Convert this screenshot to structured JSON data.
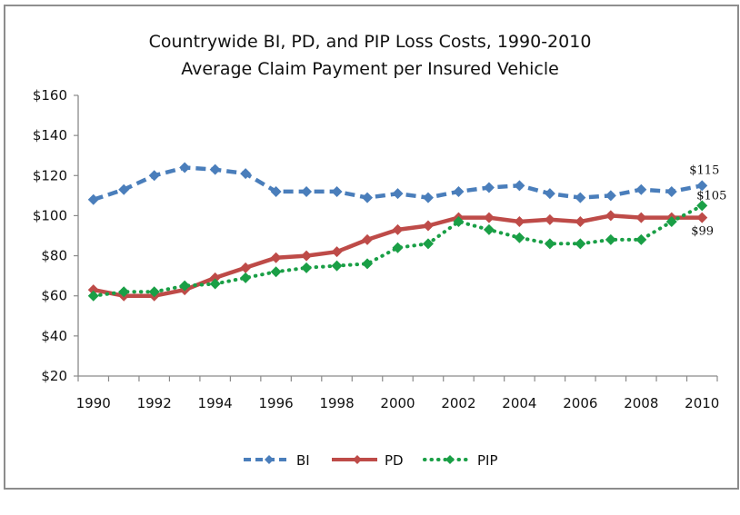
{
  "chart_data": {
    "type": "line",
    "title": "Countrywide BI, PD, and PIP Loss Costs, 1990-2010",
    "subtitle": "Average Claim Payment per Insured Vehicle",
    "xlabel": "",
    "ylabel": "",
    "ylim": [
      20,
      160
    ],
    "y_ticks": [
      "$20",
      "$40",
      "$60",
      "$80",
      "$100",
      "$120",
      "$140",
      "$160"
    ],
    "y_tick_values": [
      20,
      40,
      60,
      80,
      100,
      120,
      140,
      160
    ],
    "x": [
      1990,
      1991,
      1992,
      1993,
      1994,
      1995,
      1996,
      1997,
      1998,
      1999,
      2000,
      2001,
      2002,
      2003,
      2004,
      2005,
      2006,
      2007,
      2008,
      2009,
      2010
    ],
    "x_tick_labels": [
      "1990",
      "1992",
      "1994",
      "1996",
      "1998",
      "2000",
      "2002",
      "2004",
      "2006",
      "2008",
      "2010"
    ],
    "grid": false,
    "legend_position": "bottom",
    "series": [
      {
        "name": "BI",
        "color": "#4a7ebb",
        "style": "dashed",
        "values": [
          108,
          113,
          120,
          124,
          123,
          121,
          112,
          112,
          112,
          109,
          111,
          109,
          112,
          114,
          115,
          111,
          109,
          110,
          113,
          112,
          115
        ]
      },
      {
        "name": "PD",
        "color": "#be4b48",
        "style": "solid",
        "values": [
          63,
          60,
          60,
          63,
          69,
          74,
          79,
          80,
          82,
          88,
          93,
          95,
          99,
          99,
          97,
          98,
          97,
          100,
          99,
          99,
          99
        ]
      },
      {
        "name": "PIP",
        "color": "#1a9f46",
        "style": "dotted",
        "values": [
          60,
          62,
          62,
          65,
          66,
          69,
          72,
          74,
          75,
          76,
          84,
          86,
          97,
          93,
          89,
          86,
          86,
          88,
          88,
          97,
          105
        ]
      }
    ],
    "annotations": [
      {
        "series": "BI",
        "x": 2010,
        "text": "$115"
      },
      {
        "series": "PIP",
        "x": 2010,
        "text": "$105"
      },
      {
        "series": "PD",
        "x": 2010,
        "text": "$99"
      }
    ]
  }
}
